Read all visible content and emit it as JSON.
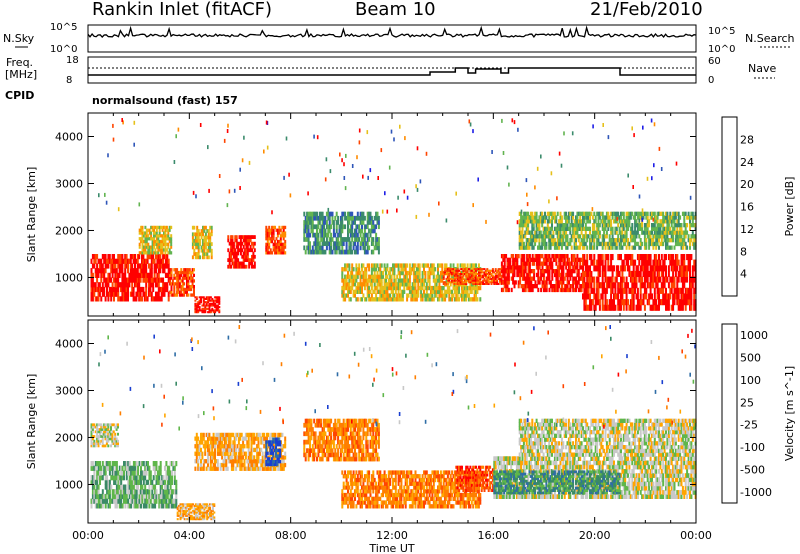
{
  "header": {
    "station": "Rankin Inlet (fitACF)",
    "beam": "Beam 10",
    "date": "21/Feb/2010"
  },
  "noise_panel": {
    "left_label": "N.Sky",
    "right_label": "N.Search",
    "left_ticks": [
      "10^5",
      "10^0"
    ],
    "right_ticks": [
      "10^5",
      "10^0"
    ]
  },
  "freq_panel": {
    "left_label_1": "Freq.",
    "left_label_2": "[MHz]",
    "right_label": "Nave",
    "left_ticks": [
      "18",
      "8"
    ],
    "right_ticks": [
      "60",
      "0"
    ]
  },
  "cpid": {
    "label": "CPID",
    "text": "normalsound (fast) 157"
  },
  "chart_data": [
    {
      "type": "heatmap",
      "name": "power",
      "ylabel": "Slant Range [km]",
      "xlabel": "Time UT",
      "x_ticks": [
        "00:00",
        "04:00",
        "08:00",
        "12:00",
        "16:00",
        "20:00",
        "00:00"
      ],
      "xlim_hours": [
        0,
        24
      ],
      "y_ticks": [
        1000,
        2000,
        3000,
        4000
      ],
      "ylim": [
        180,
        4500
      ],
      "colorbar_label": "Power [dB]",
      "colorbar_ticks": [
        "4",
        "8",
        "12",
        "16",
        "20",
        "24",
        "28"
      ],
      "colorscale": [
        "#1e1ee6",
        "#2e55b8",
        "#3b8b6c",
        "#62b450",
        "#e6c01a",
        "#ff8c00",
        "#ff4500",
        "#ff0000"
      ],
      "echo_regions": [
        {
          "t": [
            0.1,
            3.2
          ],
          "range": [
            500,
            1500
          ],
          "level": 7
        },
        {
          "t": [
            3.2,
            4.2
          ],
          "range": [
            600,
            1200
          ],
          "level": 6
        },
        {
          "t": [
            4.2,
            5.2
          ],
          "range": [
            250,
            600
          ],
          "level": 7
        },
        {
          "t": [
            5.5,
            6.6
          ],
          "range": [
            1200,
            1900
          ],
          "level": 7
        },
        {
          "t": [
            7.0,
            7.8
          ],
          "range": [
            1500,
            2100
          ],
          "level": 6
        },
        {
          "t": [
            2.0,
            3.3
          ],
          "range": [
            1500,
            2100
          ],
          "level": 4
        },
        {
          "t": [
            4.1,
            4.9
          ],
          "range": [
            1400,
            2100
          ],
          "level": 4
        },
        {
          "t": [
            8.5,
            11.5
          ],
          "range": [
            1500,
            2400
          ],
          "level": 2
        },
        {
          "t": [
            10.0,
            15.5
          ],
          "range": [
            500,
            1300
          ],
          "level": 4
        },
        {
          "t": [
            14.0,
            16.5
          ],
          "range": [
            850,
            1200
          ],
          "level": 6
        },
        {
          "t": [
            16.3,
            19.5
          ],
          "range": [
            700,
            1500
          ],
          "level": 7
        },
        {
          "t": [
            19.5,
            24.0
          ],
          "range": [
            300,
            1500
          ],
          "level": 7
        },
        {
          "t": [
            17.0,
            24.0
          ],
          "range": [
            1600,
            2400
          ],
          "level": 3
        }
      ]
    },
    {
      "type": "heatmap",
      "name": "velocity",
      "ylabel": "Slant Range [km]",
      "xlabel": "Time UT",
      "x_ticks": [
        "00:00",
        "04:00",
        "08:00",
        "12:00",
        "16:00",
        "20:00",
        "00:00"
      ],
      "xlim_hours": [
        0,
        24
      ],
      "y_ticks": [
        1000,
        2000,
        3000,
        4000
      ],
      "ylim": [
        180,
        4500
      ],
      "colorbar_label": "Velocity [m s^-1]",
      "colorbar_ticks": [
        "1000",
        "500",
        "100",
        "25",
        "-25",
        "-100",
        "-500",
        "-1000"
      ],
      "colorscale": [
        "#1a3fd0",
        "#2e6da6",
        "#3a8a66",
        "#5fb64a",
        "#c8c8c8",
        "#ffa500",
        "#ff7f00",
        "#ff4500",
        "#ff0000"
      ],
      "echo_regions": [
        {
          "t": [
            0.1,
            3.5
          ],
          "range": [
            500,
            1500
          ],
          "level": 3
        },
        {
          "t": [
            0.1,
            1.2
          ],
          "range": [
            1800,
            2300
          ],
          "level": 4
        },
        {
          "t": [
            3.5,
            5.0
          ],
          "range": [
            250,
            600
          ],
          "level": 5
        },
        {
          "t": [
            4.2,
            7.8
          ],
          "range": [
            1300,
            2100
          ],
          "level": 5
        },
        {
          "t": [
            7.0,
            7.6
          ],
          "range": [
            1400,
            2000
          ],
          "level": 0
        },
        {
          "t": [
            8.5,
            11.5
          ],
          "range": [
            1500,
            2400
          ],
          "level": 6
        },
        {
          "t": [
            10.0,
            15.5
          ],
          "range": [
            500,
            1300
          ],
          "level": 6
        },
        {
          "t": [
            14.5,
            16.0
          ],
          "range": [
            850,
            1400
          ],
          "level": 7
        },
        {
          "t": [
            16.0,
            24.0
          ],
          "range": [
            700,
            1600
          ],
          "level": 4
        },
        {
          "t": [
            17.0,
            24.0
          ],
          "range": [
            1600,
            2400
          ],
          "level": 4
        },
        {
          "t": [
            16.0,
            21.0
          ],
          "range": [
            800,
            1300
          ],
          "level": 2
        }
      ]
    }
  ]
}
